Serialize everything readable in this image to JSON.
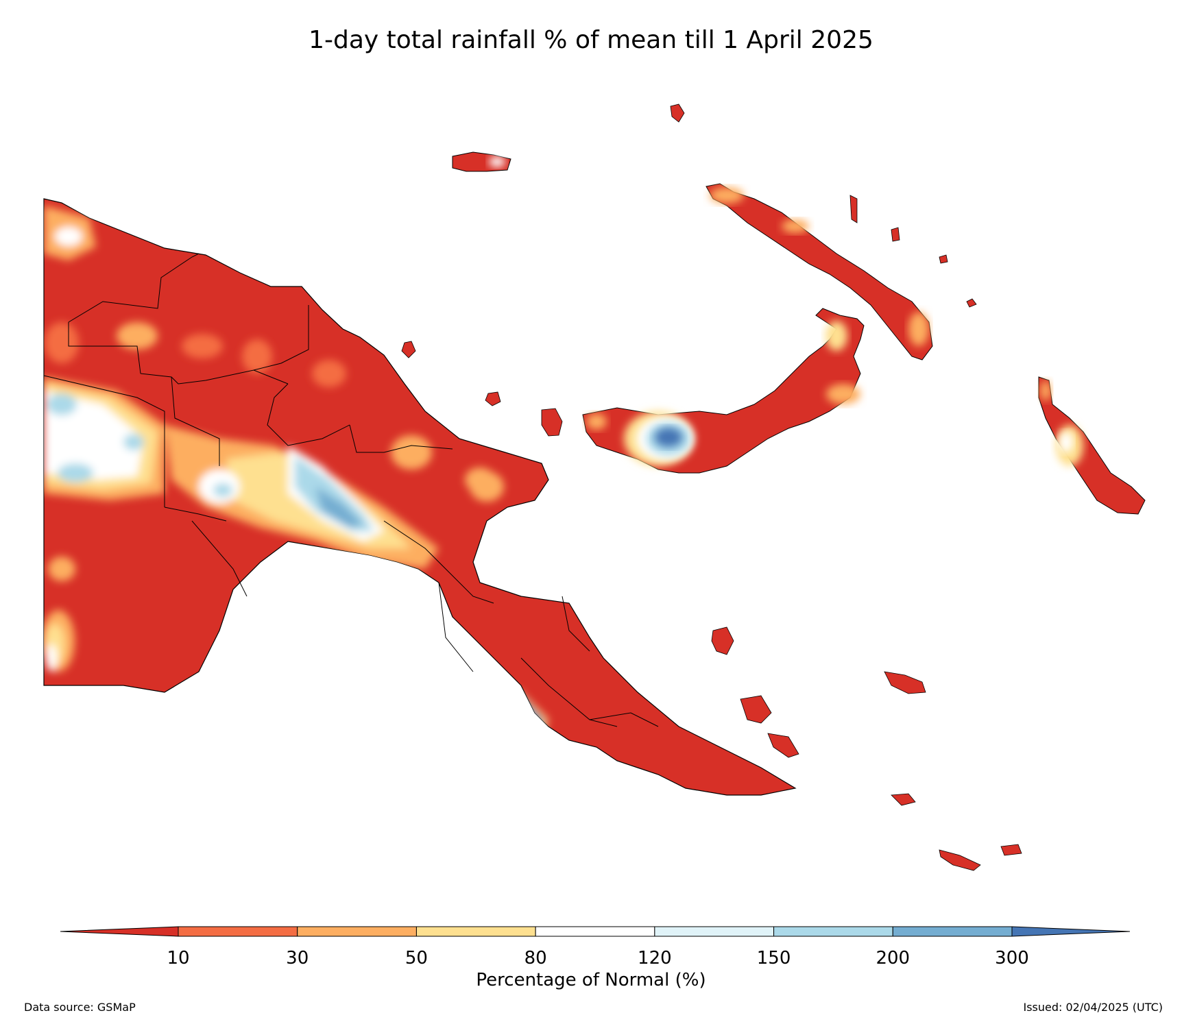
{
  "title": "1-day total rainfall % of mean till 1 April 2025",
  "colorbar": {
    "label": "Percentage of Normal (%)",
    "ticks": [
      "10",
      "30",
      "50",
      "80",
      "120",
      "150",
      "200",
      "300"
    ],
    "colors": [
      "#d73027",
      "#f46d43",
      "#fdae61",
      "#fee090",
      "#ffffff",
      "#e0f3f8",
      "#abd9e9",
      "#74add1",
      "#4575b4"
    ]
  },
  "footer": {
    "source": "Data source: GSMaP",
    "issued": "Issued: 02/04/2025 (UTC)"
  }
}
